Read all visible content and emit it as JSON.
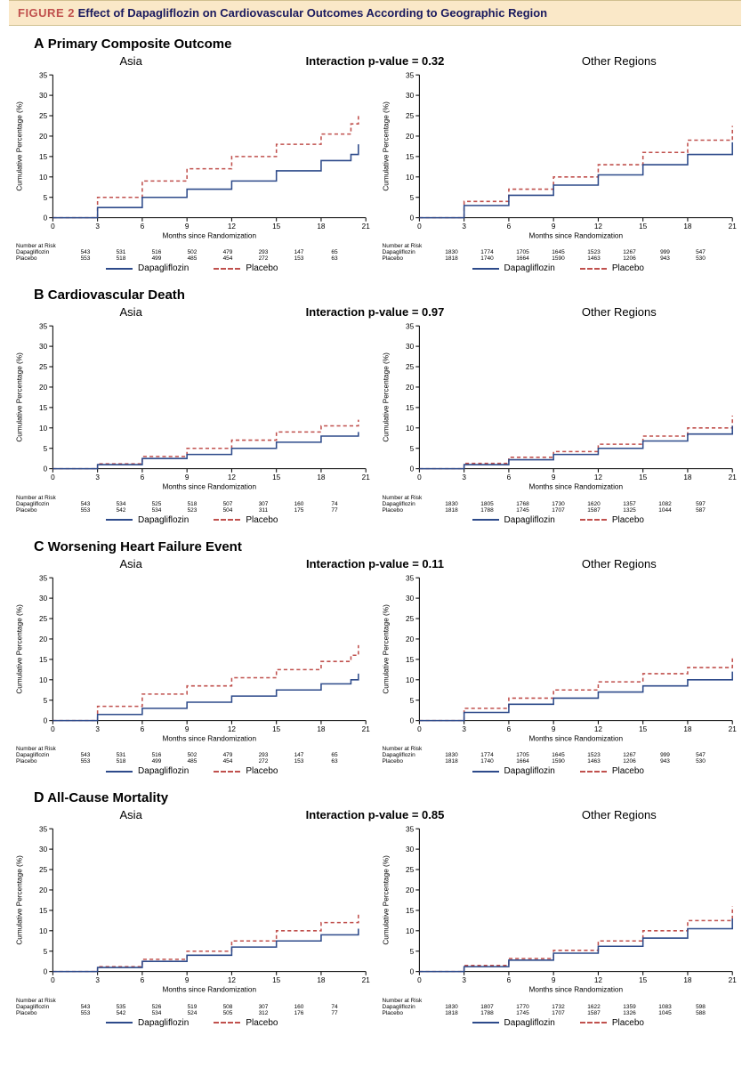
{
  "figure": {
    "label": "FIGURE 2",
    "title": "Effect of Dapagliflozin on Cardiovascular Outcomes According to Geographic Region"
  },
  "colors": {
    "dapagliflozin": "#2d4a8a",
    "placebo": "#c0504d",
    "axis": "#000000",
    "background": "#ffffff",
    "header_bg": "#fae8c8"
  },
  "chart_common": {
    "x": {
      "label": "Months since Randomization",
      "min": 0,
      "max": 21,
      "ticks": [
        0,
        3,
        6,
        9,
        12,
        15,
        18,
        21
      ]
    },
    "y": {
      "label": "Cumulative Percentage (%)",
      "min": 0,
      "max": 35,
      "ticks": [
        0,
        5,
        10,
        15,
        20,
        25,
        30,
        35
      ]
    },
    "legend": {
      "dapagliflozin": "Dapagliflozin",
      "placebo": "Placebo"
    },
    "risk_header": "Number at Risk",
    "risk_row_labels": [
      "Dapagliflozin",
      "Placebo"
    ]
  },
  "panels": [
    {
      "letter": "A",
      "title": "Primary Composite Outcome",
      "interaction": "Interaction p-value = 0.32",
      "asia": {
        "title": "Asia",
        "dapagliflozin": {
          "x": [
            0,
            3,
            6,
            9,
            12,
            15,
            18,
            20,
            20.5
          ],
          "y": [
            0,
            2.5,
            5,
            7,
            9,
            11.5,
            14,
            15.5,
            18
          ]
        },
        "placebo": {
          "x": [
            0,
            3,
            6,
            9,
            12,
            15,
            18,
            20,
            20.5
          ],
          "y": [
            0,
            5,
            9,
            12,
            15,
            18,
            20.5,
            23,
            25.5
          ]
        },
        "risk": {
          "dapa": [
            543,
            531,
            516,
            502,
            479,
            293,
            147,
            65
          ],
          "plac": [
            553,
            518,
            499,
            485,
            454,
            272,
            153,
            63
          ]
        }
      },
      "other": {
        "title": "Other Regions",
        "dapagliflozin": {
          "x": [
            0,
            3,
            6,
            9,
            12,
            15,
            18,
            21
          ],
          "y": [
            0,
            3,
            5.5,
            8,
            10.5,
            13,
            15.5,
            18.5
          ]
        },
        "placebo": {
          "x": [
            0,
            3,
            6,
            9,
            12,
            15,
            18,
            21
          ],
          "y": [
            0,
            4,
            7,
            10,
            13,
            16,
            19,
            22.5
          ]
        },
        "risk": {
          "dapa": [
            1830,
            1774,
            1705,
            1645,
            1523,
            1267,
            999,
            547
          ],
          "plac": [
            1818,
            1740,
            1664,
            1590,
            1463,
            1206,
            943,
            530
          ]
        }
      }
    },
    {
      "letter": "B",
      "title": "Cardiovascular Death",
      "interaction": "Interaction p-value = 0.97",
      "asia": {
        "title": "Asia",
        "dapagliflozin": {
          "x": [
            0,
            3,
            6,
            9,
            12,
            15,
            18,
            20.5
          ],
          "y": [
            0,
            1,
            2.5,
            3.5,
            5,
            6.5,
            8,
            9
          ]
        },
        "placebo": {
          "x": [
            0,
            3,
            6,
            9,
            12,
            15,
            18,
            20.5
          ],
          "y": [
            0,
            1.2,
            3,
            5,
            7,
            9,
            10.5,
            12
          ]
        },
        "risk": {
          "dapa": [
            543,
            534,
            525,
            518,
            507,
            307,
            160,
            74
          ],
          "plac": [
            553,
            542,
            534,
            523,
            504,
            311,
            175,
            77
          ]
        }
      },
      "other": {
        "title": "Other Regions",
        "dapagliflozin": {
          "x": [
            0,
            3,
            6,
            9,
            12,
            15,
            18,
            21
          ],
          "y": [
            0,
            1,
            2.2,
            3.5,
            5,
            6.8,
            8.5,
            10.5
          ]
        },
        "placebo": {
          "x": [
            0,
            3,
            6,
            9,
            12,
            15,
            18,
            21
          ],
          "y": [
            0,
            1.3,
            2.8,
            4.2,
            6,
            8,
            10,
            13
          ]
        },
        "risk": {
          "dapa": [
            1830,
            1805,
            1768,
            1730,
            1620,
            1357,
            1082,
            597
          ],
          "plac": [
            1818,
            1788,
            1745,
            1707,
            1587,
            1325,
            1044,
            587
          ]
        }
      }
    },
    {
      "letter": "C",
      "title": "Worsening Heart Failure Event",
      "interaction": "Interaction p-value = 0.11",
      "asia": {
        "title": "Asia",
        "dapagliflozin": {
          "x": [
            0,
            3,
            6,
            9,
            12,
            15,
            18,
            20,
            20.5
          ],
          "y": [
            0,
            1.5,
            3,
            4.5,
            6,
            7.5,
            9,
            10,
            11.5
          ]
        },
        "placebo": {
          "x": [
            0,
            3,
            6,
            9,
            12,
            15,
            18,
            20,
            20.5
          ],
          "y": [
            0,
            3.5,
            6.5,
            8.5,
            10.5,
            12.5,
            14.5,
            16,
            18.5
          ]
        },
        "risk": {
          "dapa": [
            543,
            531,
            516,
            502,
            479,
            293,
            147,
            65
          ],
          "plac": [
            553,
            518,
            499,
            485,
            454,
            272,
            153,
            63
          ]
        }
      },
      "other": {
        "title": "Other Regions",
        "dapagliflozin": {
          "x": [
            0,
            3,
            6,
            9,
            12,
            15,
            18,
            21
          ],
          "y": [
            0,
            2,
            4,
            5.5,
            7,
            8.5,
            10,
            12
          ]
        },
        "placebo": {
          "x": [
            0,
            3,
            6,
            9,
            12,
            15,
            18,
            21
          ],
          "y": [
            0,
            3,
            5.5,
            7.5,
            9.5,
            11.5,
            13,
            15.5
          ]
        },
        "risk": {
          "dapa": [
            1830,
            1774,
            1705,
            1645,
            1523,
            1267,
            999,
            547
          ],
          "plac": [
            1818,
            1740,
            1664,
            1590,
            1463,
            1206,
            943,
            530
          ]
        }
      }
    },
    {
      "letter": "D",
      "title": "All-Cause Mortality",
      "interaction": "Interaction p-value = 0.85",
      "asia": {
        "title": "Asia",
        "dapagliflozin": {
          "x": [
            0,
            3,
            6,
            9,
            12,
            15,
            18,
            20.5
          ],
          "y": [
            0,
            1,
            2.5,
            4,
            6,
            7.5,
            9,
            10.5
          ]
        },
        "placebo": {
          "x": [
            0,
            3,
            6,
            9,
            12,
            15,
            18,
            20.5
          ],
          "y": [
            0,
            1.2,
            3,
            5,
            7.5,
            10,
            12,
            14
          ]
        },
        "risk": {
          "dapa": [
            543,
            535,
            526,
            519,
            508,
            307,
            160,
            74
          ],
          "plac": [
            553,
            542,
            534,
            524,
            505,
            312,
            176,
            77
          ]
        }
      },
      "other": {
        "title": "Other Regions",
        "dapagliflozin": {
          "x": [
            0,
            3,
            6,
            9,
            12,
            15,
            18,
            21
          ],
          "y": [
            0,
            1.2,
            2.8,
            4.5,
            6.2,
            8.2,
            10.5,
            13
          ]
        },
        "placebo": {
          "x": [
            0,
            3,
            6,
            9,
            12,
            15,
            18,
            21
          ],
          "y": [
            0,
            1.5,
            3.2,
            5.2,
            7.5,
            10,
            12.5,
            16
          ]
        },
        "risk": {
          "dapa": [
            1830,
            1807,
            1770,
            1732,
            1622,
            1359,
            1083,
            598
          ],
          "plac": [
            1818,
            1788,
            1745,
            1707,
            1587,
            1326,
            1045,
            588
          ]
        }
      }
    }
  ]
}
